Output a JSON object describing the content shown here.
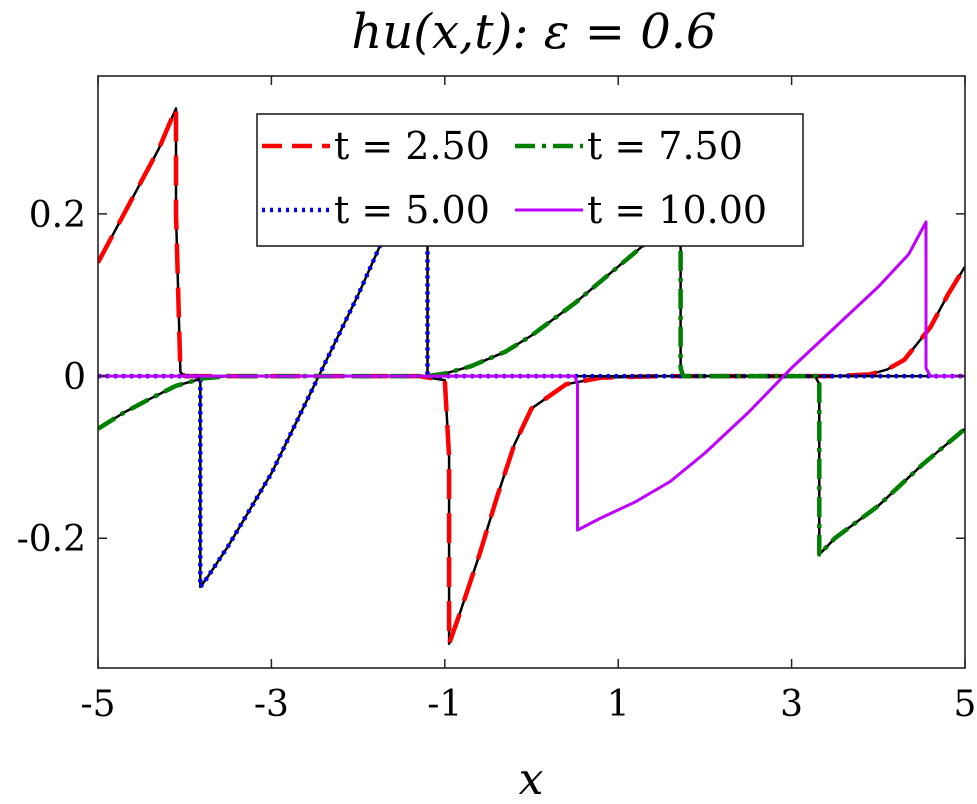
{
  "chart_data": {
    "type": "line",
    "title": "hu(x,t): ε = 0.6",
    "xlabel": "x",
    "ylabel": "",
    "xlim": [
      -5,
      5
    ],
    "ylim": [
      -0.36,
      0.37
    ],
    "xticks": [
      -5,
      -3,
      -1,
      1,
      3,
      5
    ],
    "xtick_labels": [
      "-5",
      "-3",
      "-1",
      "1",
      "3",
      "5"
    ],
    "yticks": [
      -0.2,
      0,
      0.2
    ],
    "ytick_labels": [
      "-0.2",
      "0",
      "0.2"
    ],
    "grid": false,
    "legend_position": "top-center",
    "reference_color": "#000000",
    "series": [
      {
        "name": "t = 2.50",
        "color": "#ff0000",
        "style": "dashed",
        "x": [
          -5.0,
          -4.9,
          -4.7,
          -4.5,
          -4.3,
          -4.1,
          -4.1,
          -4.05,
          -4.0,
          -3.8,
          -3.0,
          -2.0,
          -1.3,
          -1.0,
          -0.95,
          -0.95,
          -0.85,
          -0.6,
          -0.4,
          -0.2,
          0.0,
          0.4,
          0.8,
          1.5,
          2.5,
          3.5,
          3.9,
          4.1,
          4.3,
          4.6,
          4.8,
          5.0
        ],
        "y": [
          0.14,
          0.16,
          0.2,
          0.24,
          0.28,
          0.33,
          0.2,
          0.005,
          0.0,
          0.0,
          0.0,
          0.0,
          0.0,
          -0.005,
          -0.1,
          -0.33,
          -0.3,
          -0.22,
          -0.15,
          -0.085,
          -0.04,
          -0.01,
          -0.002,
          0.0,
          0.0,
          0.0,
          0.002,
          0.008,
          0.02,
          0.06,
          0.1,
          0.135
        ]
      },
      {
        "name": "t = 5.00",
        "color": "#0000ff",
        "style": "dotted",
        "x": [
          -5.0,
          -4.0,
          -3.85,
          -3.82,
          -3.82,
          -3.75,
          -3.5,
          -3.0,
          -2.5,
          -2.0,
          -1.75,
          -1.5,
          -1.2,
          -1.2,
          -1.18,
          -1.0,
          0.0,
          1.0,
          2.0,
          3.0,
          4.0,
          5.0
        ],
        "y": [
          0.0,
          0.0,
          0.0,
          -0.003,
          -0.26,
          -0.25,
          -0.21,
          -0.12,
          -0.01,
          0.1,
          0.16,
          0.2,
          0.24,
          0.0,
          0.0,
          0.0,
          0.0,
          0.0,
          0.0,
          0.0,
          0.0,
          0.0
        ]
      },
      {
        "name": "t = 7.50",
        "color": "#008000",
        "style": "dashdot",
        "x": [
          -5.0,
          -4.7,
          -4.4,
          -4.1,
          -3.8,
          -3.5,
          -3.0,
          -1.2,
          -1.0,
          -0.7,
          -0.3,
          0.0,
          0.5,
          1.0,
          1.5,
          1.72,
          1.72,
          1.75,
          2.5,
          3.28,
          3.28,
          3.32,
          3.32,
          3.5,
          4.0,
          4.5,
          5.0
        ],
        "y": [
          -0.065,
          -0.045,
          -0.028,
          -0.012,
          -0.003,
          0.0,
          0.0,
          0.0,
          0.003,
          0.012,
          0.03,
          0.05,
          0.09,
          0.135,
          0.18,
          0.2,
          0.01,
          0.0,
          0.0,
          0.0,
          -0.002,
          -0.01,
          -0.22,
          -0.2,
          -0.16,
          -0.11,
          -0.065
        ]
      },
      {
        "name": "t = 10.00",
        "color": "#bf00ff",
        "style": "solid",
        "x": [
          -5.0,
          -2.0,
          0.0,
          0.5,
          0.53,
          0.53,
          0.8,
          1.2,
          1.6,
          2.0,
          2.5,
          3.0,
          3.5,
          4.0,
          4.35,
          4.55,
          4.55,
          4.6,
          5.0
        ],
        "y": [
          0.0,
          0.0,
          0.0,
          0.0,
          -0.01,
          -0.19,
          -0.175,
          -0.155,
          -0.13,
          -0.095,
          -0.045,
          0.01,
          0.06,
          0.11,
          0.15,
          0.19,
          0.01,
          0.0,
          0.0
        ]
      }
    ]
  }
}
